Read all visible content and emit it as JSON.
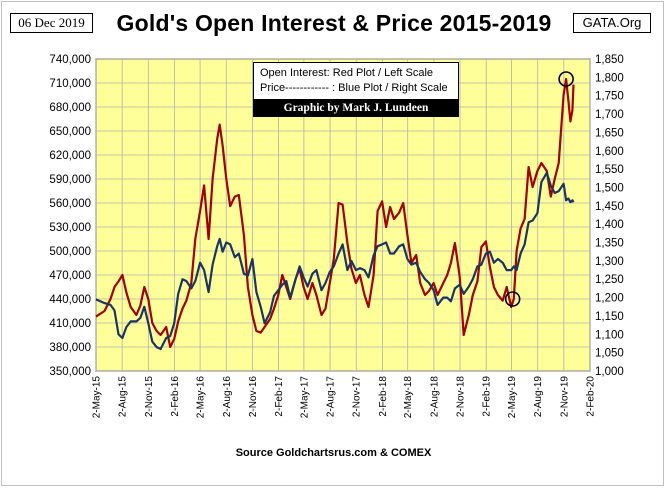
{
  "header": {
    "date": "06 Dec 2019",
    "site": "GATA.Org"
  },
  "legend": {
    "line1": "Open Interest:  Red Plot / Left Scale",
    "line2": "Price------------ : Blue Plot / Right Scale"
  },
  "credit": "Graphic by Mark J. Lundeen",
  "source": "Source Goldchartsrus.com & COMEX",
  "colors": {
    "open_interest": "#a30000",
    "price": "#1a3564",
    "plot_background": "#ffff99",
    "grid": "#b0b0b0"
  },
  "chart_data": {
    "type": "line",
    "title": "Gold's Open Interest & Price 2015-2019",
    "xlabel": "",
    "ylabel_left": "",
    "ylabel_right": "",
    "grid": true,
    "legend_placement": "top-center",
    "x_ticks": [
      "2-May-15",
      "2-Aug-15",
      "2-Nov-15",
      "2-Feb-16",
      "2-May-16",
      "2-Aug-16",
      "2-Nov-16",
      "2-Feb-17",
      "2-May-17",
      "2-Aug-17",
      "2-Nov-17",
      "2-Feb-18",
      "2-May-18",
      "2-Aug-18",
      "2-Nov-18",
      "2-Feb-19",
      "2-May-19",
      "2-Aug-19",
      "2-Nov-19",
      "2-Feb-20"
    ],
    "xlim": [
      "2015-05-02",
      "2020-02-02"
    ],
    "left_axis": {
      "ylim": [
        350000,
        740000
      ],
      "ticks": [
        "350,000",
        "380,000",
        "410,000",
        "440,000",
        "470,000",
        "500,000",
        "530,000",
        "560,000",
        "590,000",
        "620,000",
        "650,000",
        "680,000",
        "710,000",
        "740,000"
      ]
    },
    "right_axis": {
      "ylim": [
        1000,
        1850
      ],
      "ticks": [
        "1,000",
        "1,050",
        "1,100",
        "1,150",
        "1,200",
        "1,250",
        "1,300",
        "1,350",
        "1,400",
        "1,450",
        "1,500",
        "1,550",
        "1,600",
        "1,650",
        "1,700",
        "1,750",
        "1,800",
        "1,850"
      ]
    },
    "series": [
      {
        "name": "Open Interest",
        "axis": "left",
        "points": [
          [
            "2015-05-02",
            418000
          ],
          [
            "2015-06-01",
            425000
          ],
          [
            "2015-06-22",
            440000
          ],
          [
            "2015-07-06",
            455000
          ],
          [
            "2015-07-20",
            462000
          ],
          [
            "2015-08-03",
            470000
          ],
          [
            "2015-08-17",
            448000
          ],
          [
            "2015-09-01",
            430000
          ],
          [
            "2015-09-21",
            420000
          ],
          [
            "2015-10-05",
            432000
          ],
          [
            "2015-10-19",
            455000
          ],
          [
            "2015-11-02",
            440000
          ],
          [
            "2015-11-16",
            410000
          ],
          [
            "2015-12-01",
            400000
          ],
          [
            "2015-12-15",
            395000
          ],
          [
            "2016-01-04",
            405000
          ],
          [
            "2016-01-18",
            380000
          ],
          [
            "2016-02-01",
            390000
          ],
          [
            "2016-02-15",
            412000
          ],
          [
            "2016-03-01",
            428000
          ],
          [
            "2016-03-15",
            438000
          ],
          [
            "2016-04-01",
            460000
          ],
          [
            "2016-04-15",
            515000
          ],
          [
            "2016-05-02",
            550000
          ],
          [
            "2016-05-16",
            582000
          ],
          [
            "2016-06-01",
            515000
          ],
          [
            "2016-06-15",
            590000
          ],
          [
            "2016-07-01",
            640000
          ],
          [
            "2016-07-10",
            658000
          ],
          [
            "2016-07-20",
            632000
          ],
          [
            "2016-08-02",
            590000
          ],
          [
            "2016-08-16",
            556000
          ],
          [
            "2016-09-01",
            568000
          ],
          [
            "2016-09-15",
            570000
          ],
          [
            "2016-10-03",
            520000
          ],
          [
            "2016-10-17",
            455000
          ],
          [
            "2016-11-02",
            420000
          ],
          [
            "2016-11-16",
            400000
          ],
          [
            "2016-12-01",
            398000
          ],
          [
            "2016-12-15",
            405000
          ],
          [
            "2017-01-03",
            415000
          ],
          [
            "2017-01-17",
            428000
          ],
          [
            "2017-02-01",
            445000
          ],
          [
            "2017-02-15",
            470000
          ],
          [
            "2017-03-01",
            455000
          ],
          [
            "2017-03-15",
            440000
          ],
          [
            "2017-04-03",
            465000
          ],
          [
            "2017-04-17",
            478000
          ],
          [
            "2017-05-01",
            455000
          ],
          [
            "2017-05-15",
            440000
          ],
          [
            "2017-06-01",
            460000
          ],
          [
            "2017-06-15",
            445000
          ],
          [
            "2017-07-03",
            420000
          ],
          [
            "2017-07-17",
            428000
          ],
          [
            "2017-08-01",
            460000
          ],
          [
            "2017-08-15",
            490000
          ],
          [
            "2017-09-01",
            560000
          ],
          [
            "2017-09-15",
            558000
          ],
          [
            "2017-10-02",
            510000
          ],
          [
            "2017-10-16",
            478000
          ],
          [
            "2017-11-01",
            460000
          ],
          [
            "2017-11-15",
            470000
          ],
          [
            "2017-12-01",
            445000
          ],
          [
            "2017-12-15",
            430000
          ],
          [
            "2018-01-02",
            470000
          ],
          [
            "2018-01-16",
            550000
          ],
          [
            "2018-02-01",
            562000
          ],
          [
            "2018-02-15",
            530000
          ],
          [
            "2018-03-01",
            555000
          ],
          [
            "2018-03-15",
            540000
          ],
          [
            "2018-04-02",
            548000
          ],
          [
            "2018-04-16",
            560000
          ],
          [
            "2018-05-01",
            520000
          ],
          [
            "2018-05-15",
            485000
          ],
          [
            "2018-06-01",
            495000
          ],
          [
            "2018-06-15",
            460000
          ],
          [
            "2018-07-02",
            445000
          ],
          [
            "2018-07-16",
            450000
          ],
          [
            "2018-08-01",
            460000
          ],
          [
            "2018-08-15",
            445000
          ],
          [
            "2018-09-04",
            460000
          ],
          [
            "2018-09-18",
            470000
          ],
          [
            "2018-10-01",
            485000
          ],
          [
            "2018-10-15",
            510000
          ],
          [
            "2018-11-01",
            468000
          ],
          [
            "2018-11-15",
            395000
          ],
          [
            "2018-12-03",
            420000
          ],
          [
            "2018-12-17",
            445000
          ],
          [
            "2019-01-02",
            462000
          ],
          [
            "2019-01-16",
            505000
          ],
          [
            "2019-02-01",
            512000
          ],
          [
            "2019-02-15",
            480000
          ],
          [
            "2019-03-01",
            455000
          ],
          [
            "2019-03-15",
            445000
          ],
          [
            "2019-04-01",
            438000
          ],
          [
            "2019-04-15",
            455000
          ],
          [
            "2019-05-01",
            430000
          ],
          [
            "2019-05-10",
            440000
          ],
          [
            "2019-05-20",
            500000
          ],
          [
            "2019-06-03",
            528000
          ],
          [
            "2019-06-17",
            540000
          ],
          [
            "2019-07-01",
            605000
          ],
          [
            "2019-07-15",
            580000
          ],
          [
            "2019-08-01",
            600000
          ],
          [
            "2019-08-15",
            610000
          ],
          [
            "2019-09-03",
            600000
          ],
          [
            "2019-09-17",
            568000
          ],
          [
            "2019-10-01",
            590000
          ],
          [
            "2019-10-15",
            610000
          ],
          [
            "2019-11-01",
            695000
          ],
          [
            "2019-11-10",
            715000
          ],
          [
            "2019-11-18",
            688000
          ],
          [
            "2019-11-25",
            662000
          ],
          [
            "2019-12-02",
            676000
          ],
          [
            "2019-12-06",
            708000
          ]
        ]
      },
      {
        "name": "Price",
        "axis": "right",
        "points": [
          [
            "2015-05-02",
            1195
          ],
          [
            "2015-06-01",
            1185
          ],
          [
            "2015-06-22",
            1180
          ],
          [
            "2015-07-06",
            1165
          ],
          [
            "2015-07-20",
            1100
          ],
          [
            "2015-08-03",
            1090
          ],
          [
            "2015-08-17",
            1120
          ],
          [
            "2015-09-01",
            1135
          ],
          [
            "2015-09-21",
            1135
          ],
          [
            "2015-10-05",
            1145
          ],
          [
            "2015-10-19",
            1175
          ],
          [
            "2015-11-02",
            1130
          ],
          [
            "2015-11-16",
            1080
          ],
          [
            "2015-12-01",
            1065
          ],
          [
            "2015-12-15",
            1060
          ],
          [
            "2016-01-04",
            1090
          ],
          [
            "2016-01-18",
            1095
          ],
          [
            "2016-02-01",
            1130
          ],
          [
            "2016-02-15",
            1210
          ],
          [
            "2016-03-01",
            1250
          ],
          [
            "2016-03-15",
            1245
          ],
          [
            "2016-04-01",
            1225
          ],
          [
            "2016-04-15",
            1245
          ],
          [
            "2016-05-02",
            1295
          ],
          [
            "2016-05-16",
            1275
          ],
          [
            "2016-06-01",
            1215
          ],
          [
            "2016-06-15",
            1290
          ],
          [
            "2016-07-01",
            1340
          ],
          [
            "2016-07-10",
            1360
          ],
          [
            "2016-07-20",
            1325
          ],
          [
            "2016-08-02",
            1350
          ],
          [
            "2016-08-16",
            1345
          ],
          [
            "2016-09-01",
            1310
          ],
          [
            "2016-09-15",
            1320
          ],
          [
            "2016-10-03",
            1265
          ],
          [
            "2016-10-17",
            1260
          ],
          [
            "2016-11-02",
            1305
          ],
          [
            "2016-11-16",
            1215
          ],
          [
            "2016-12-01",
            1175
          ],
          [
            "2016-12-15",
            1130
          ],
          [
            "2017-01-03",
            1160
          ],
          [
            "2017-01-17",
            1205
          ],
          [
            "2017-02-01",
            1220
          ],
          [
            "2017-02-15",
            1235
          ],
          [
            "2017-03-01",
            1245
          ],
          [
            "2017-03-15",
            1200
          ],
          [
            "2017-04-03",
            1250
          ],
          [
            "2017-04-17",
            1285
          ],
          [
            "2017-05-01",
            1255
          ],
          [
            "2017-05-15",
            1230
          ],
          [
            "2017-06-01",
            1265
          ],
          [
            "2017-06-15",
            1275
          ],
          [
            "2017-07-03",
            1220
          ],
          [
            "2017-07-17",
            1240
          ],
          [
            "2017-08-01",
            1270
          ],
          [
            "2017-08-15",
            1285
          ],
          [
            "2017-09-01",
            1320
          ],
          [
            "2017-09-15",
            1345
          ],
          [
            "2017-10-02",
            1275
          ],
          [
            "2017-10-16",
            1300
          ],
          [
            "2017-11-01",
            1275
          ],
          [
            "2017-11-15",
            1280
          ],
          [
            "2017-12-01",
            1275
          ],
          [
            "2017-12-15",
            1255
          ],
          [
            "2018-01-02",
            1315
          ],
          [
            "2018-01-16",
            1340
          ],
          [
            "2018-02-01",
            1345
          ],
          [
            "2018-02-15",
            1350
          ],
          [
            "2018-03-01",
            1320
          ],
          [
            "2018-03-15",
            1320
          ],
          [
            "2018-04-02",
            1340
          ],
          [
            "2018-04-16",
            1345
          ],
          [
            "2018-05-01",
            1305
          ],
          [
            "2018-05-15",
            1290
          ],
          [
            "2018-06-01",
            1295
          ],
          [
            "2018-06-15",
            1270
          ],
          [
            "2018-07-02",
            1250
          ],
          [
            "2018-07-16",
            1240
          ],
          [
            "2018-08-01",
            1220
          ],
          [
            "2018-08-15",
            1180
          ],
          [
            "2018-09-04",
            1200
          ],
          [
            "2018-09-18",
            1200
          ],
          [
            "2018-10-01",
            1190
          ],
          [
            "2018-10-15",
            1225
          ],
          [
            "2018-11-01",
            1235
          ],
          [
            "2018-11-15",
            1210
          ],
          [
            "2018-12-03",
            1230
          ],
          [
            "2018-12-17",
            1250
          ],
          [
            "2019-01-02",
            1285
          ],
          [
            "2019-01-16",
            1290
          ],
          [
            "2019-02-01",
            1320
          ],
          [
            "2019-02-15",
            1325
          ],
          [
            "2019-03-01",
            1295
          ],
          [
            "2019-03-15",
            1305
          ],
          [
            "2019-04-01",
            1295
          ],
          [
            "2019-04-15",
            1275
          ],
          [
            "2019-05-01",
            1275
          ],
          [
            "2019-05-10",
            1285
          ],
          [
            "2019-05-20",
            1275
          ],
          [
            "2019-06-03",
            1320
          ],
          [
            "2019-06-17",
            1345
          ],
          [
            "2019-07-01",
            1405
          ],
          [
            "2019-07-15",
            1410
          ],
          [
            "2019-08-01",
            1430
          ],
          [
            "2019-08-15",
            1515
          ],
          [
            "2019-09-03",
            1540
          ],
          [
            "2019-09-17",
            1505
          ],
          [
            "2019-10-01",
            1485
          ],
          [
            "2019-10-15",
            1490
          ],
          [
            "2019-11-01",
            1510
          ],
          [
            "2019-11-10",
            1465
          ],
          [
            "2019-11-18",
            1470
          ],
          [
            "2019-11-25",
            1460
          ],
          [
            "2019-12-02",
            1465
          ],
          [
            "2019-12-06",
            1460
          ]
        ]
      }
    ],
    "annotations": [
      {
        "type": "circle",
        "series": "Open Interest",
        "at": [
          "2019-05-06",
          440000
        ]
      },
      {
        "type": "circle",
        "series": "Open Interest",
        "at": [
          "2019-11-10",
          715000
        ]
      }
    ]
  }
}
